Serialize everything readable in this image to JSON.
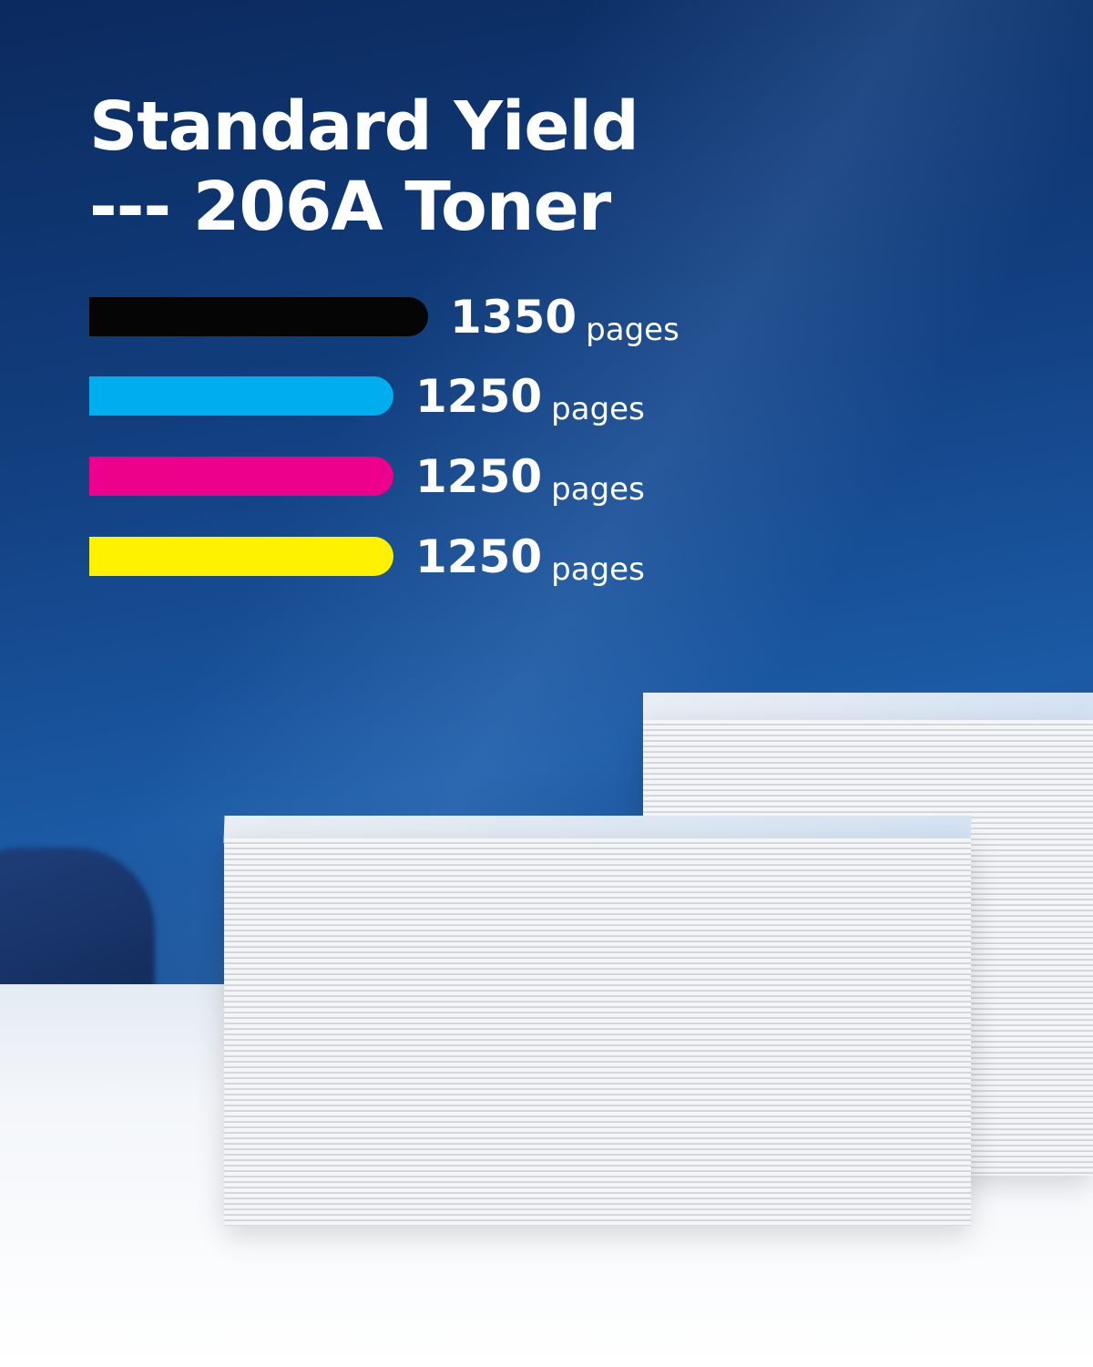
{
  "title": {
    "line1": "Standard Yield",
    "line2": "--- 206A Toner"
  },
  "yields": [
    {
      "color_name": "black",
      "color": "#050505",
      "value": "1350",
      "unit": "pages"
    },
    {
      "color_name": "cyan",
      "color": "#00aeef",
      "value": "1250",
      "unit": "pages"
    },
    {
      "color_name": "magenta",
      "color": "#ec008c",
      "value": "1250",
      "unit": "pages"
    },
    {
      "color_name": "yellow",
      "color": "#fff200",
      "value": "1250",
      "unit": "pages"
    }
  ]
}
